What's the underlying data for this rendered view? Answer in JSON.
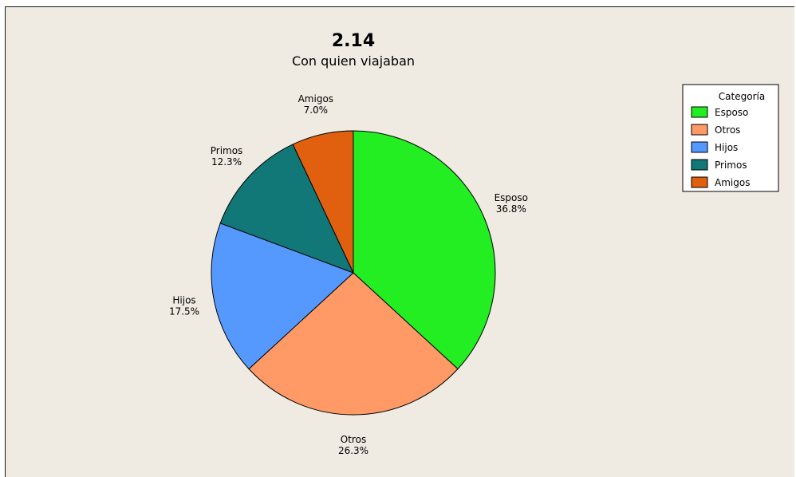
{
  "chart_data": {
    "type": "pie",
    "title": "2.14",
    "subtitle": "Con quien viajaban",
    "categories": [
      "Esposo",
      "Otros",
      "Hijos",
      "Primos",
      "Amigos"
    ],
    "values": [
      36.8,
      26.3,
      17.5,
      12.3,
      7.0
    ],
    "value_labels": [
      "36.8%",
      "26.3%",
      "17.5%",
      "12.3%",
      "7.0%"
    ],
    "colors": [
      "#22ee22",
      "#ff9966",
      "#5599ff",
      "#117777",
      "#e06010"
    ],
    "legend": {
      "title": "Categoría",
      "position": "top-right"
    },
    "start_angle": "top",
    "direction": "clockwise"
  }
}
